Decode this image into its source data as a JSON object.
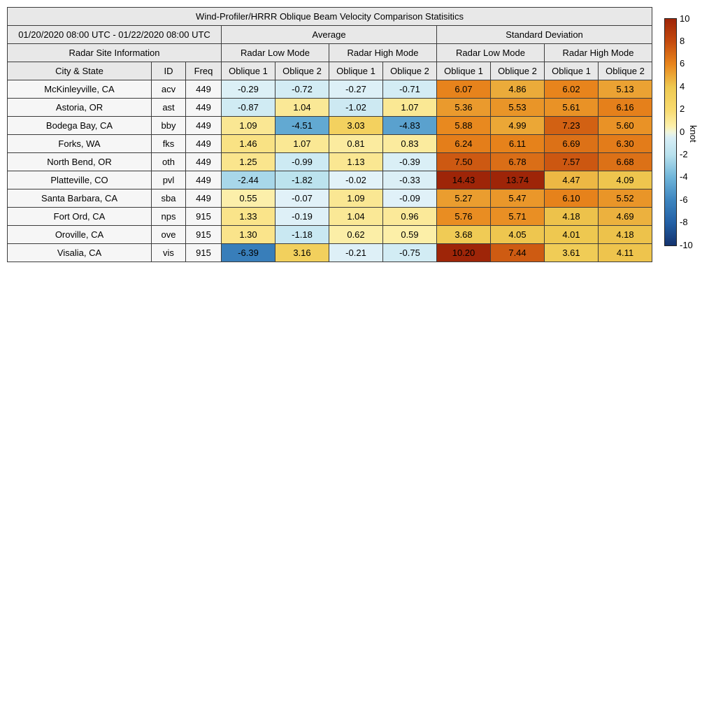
{
  "title": "Wind-Profiler/HRRR Oblique Beam Velocity Comparison Statisitics",
  "header": {
    "date_range": "01/20/2020 08:00 UTC - 01/22/2020 08:00 UTC",
    "avg_label": "Average",
    "std_label": "Standard Deviation",
    "site_info_label": "Radar Site Information",
    "mode_labels": [
      "Radar Low Mode",
      "Radar High Mode",
      "Radar Low Mode",
      "Radar High Mode"
    ],
    "city_label": "City & State",
    "id_label": "ID",
    "freq_label": "Freq",
    "oblique_labels": [
      "Oblique 1",
      "Oblique 2",
      "Oblique 1",
      "Oblique 2",
      "Oblique 1",
      "Oblique 2",
      "Oblique 1",
      "Oblique 2"
    ]
  },
  "chart_data": {
    "type": "heatmap",
    "title": "Wind-Profiler/HRRR Oblique Beam Velocity Comparison Statisitics",
    "columns": [
      "Avg Low Oblique 1",
      "Avg Low Oblique 2",
      "Avg High Oblique 1",
      "Avg High Oblique 2",
      "Std Low Oblique 1",
      "Std Low Oblique 2",
      "Std High Oblique 1",
      "Std High Oblique 2"
    ],
    "rows": [
      {
        "city": "McKinleyville, CA",
        "id": "acv",
        "freq": "449",
        "values": [
          -0.29,
          -0.72,
          -0.27,
          -0.71,
          6.07,
          4.86,
          6.02,
          5.13
        ]
      },
      {
        "city": "Astoria, OR",
        "id": "ast",
        "freq": "449",
        "values": [
          -0.87,
          1.04,
          -1.02,
          1.07,
          5.36,
          5.53,
          5.61,
          6.16
        ]
      },
      {
        "city": "Bodega Bay, CA",
        "id": "bby",
        "freq": "449",
        "values": [
          1.09,
          -4.51,
          3.03,
          -4.83,
          5.88,
          4.99,
          7.23,
          5.6
        ]
      },
      {
        "city": "Forks, WA",
        "id": "fks",
        "freq": "449",
        "values": [
          1.46,
          1.07,
          0.81,
          0.83,
          6.24,
          6.11,
          6.69,
          6.3
        ]
      },
      {
        "city": "North Bend, OR",
        "id": "oth",
        "freq": "449",
        "values": [
          1.25,
          -0.99,
          1.13,
          -0.39,
          7.5,
          6.78,
          7.57,
          6.68
        ]
      },
      {
        "city": "Platteville, CO",
        "id": "pvl",
        "freq": "449",
        "values": [
          -2.44,
          -1.82,
          -0.02,
          -0.33,
          14.43,
          13.74,
          4.47,
          4.09
        ]
      },
      {
        "city": "Santa Barbara, CA",
        "id": "sba",
        "freq": "449",
        "values": [
          0.55,
          -0.07,
          1.09,
          -0.09,
          5.27,
          5.47,
          6.1,
          5.52
        ]
      },
      {
        "city": "Fort Ord, CA",
        "id": "nps",
        "freq": "915",
        "values": [
          1.33,
          -0.19,
          1.04,
          0.96,
          5.76,
          5.71,
          4.18,
          4.69
        ]
      },
      {
        "city": "Oroville, CA",
        "id": "ove",
        "freq": "915",
        "values": [
          1.3,
          -1.18,
          0.62,
          0.59,
          3.68,
          4.05,
          4.01,
          4.18
        ]
      },
      {
        "city": "Visalia, CA",
        "id": "vis",
        "freq": "915",
        "values": [
          -6.39,
          3.16,
          -0.21,
          -0.75,
          10.2,
          7.44,
          3.61,
          4.11
        ]
      }
    ],
    "colorbar": {
      "label": "knot",
      "min": -10,
      "max": 10,
      "ticks": [
        10,
        8,
        6,
        4,
        2,
        0,
        -2,
        -4,
        -6,
        -8,
        -10
      ],
      "stops": [
        [
          -10,
          "#14336e"
        ],
        [
          -8,
          "#2360a5"
        ],
        [
          -6,
          "#3d85bf"
        ],
        [
          -4,
          "#6fb5d9"
        ],
        [
          -2,
          "#b8e1ed"
        ],
        [
          -0.01,
          "#e2f2f8"
        ],
        [
          0.01,
          "#fdf7c0"
        ],
        [
          2,
          "#f8da6e"
        ],
        [
          4,
          "#eec850"
        ],
        [
          6,
          "#e8851c"
        ],
        [
          8,
          "#c44a0e"
        ],
        [
          10,
          "#9e2508"
        ]
      ]
    },
    "value_format": "0.00"
  },
  "colors": {
    "header_bg": "#e8e8e8",
    "site_bg": "#f6f6f6",
    "border": "#3c3c3c"
  }
}
